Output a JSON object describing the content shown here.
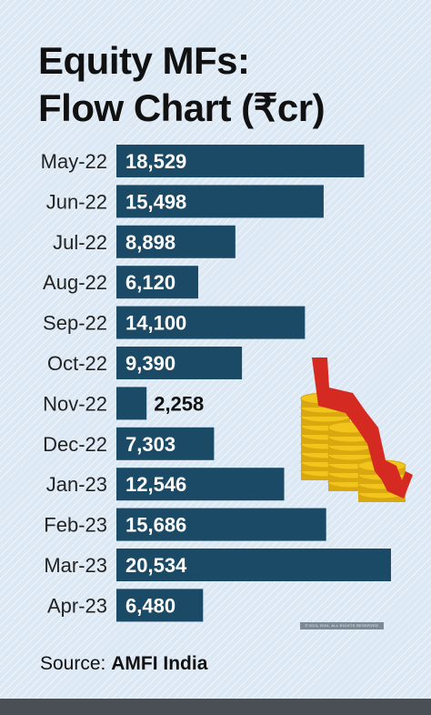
{
  "title_line1": "Equity MFs:",
  "title_line2": "Flow Chart (₹cr)",
  "source_label": "Source:",
  "source_value": "AMFI India",
  "credit": "© ECIL 2024. ALL RIGHTS RESERVED",
  "colors": {
    "bar": "#1b4a66",
    "bar_label": "#ffffff",
    "outside_label": "#111111",
    "category_text": "#222222",
    "coin": "#f2c51c",
    "coin_dark": "#d9a70f",
    "arrow": "#d42a22"
  },
  "chart_data": {
    "type": "bar",
    "orientation": "horizontal",
    "title": "Equity MFs: Flow Chart (₹cr)",
    "categories": [
      "May-22",
      "Jun-22",
      "Jul-22",
      "Aug-22",
      "Sep-22",
      "Oct-22",
      "Nov-22",
      "Dec-22",
      "Jan-23",
      "Feb-23",
      "Mar-23",
      "Apr-23"
    ],
    "values": [
      18529,
      15498,
      8898,
      6120,
      14100,
      9390,
      2258,
      7303,
      12546,
      15686,
      20534,
      6480
    ],
    "value_labels": [
      "18,529",
      "15,498",
      "8,898",
      "6,120",
      "14,100",
      "9,390",
      "2,258",
      "7,303",
      "12,546",
      "15,686",
      "20,534",
      "6,480"
    ],
    "xlim": [
      0,
      20534
    ],
    "grid": false,
    "legend": "none"
  }
}
